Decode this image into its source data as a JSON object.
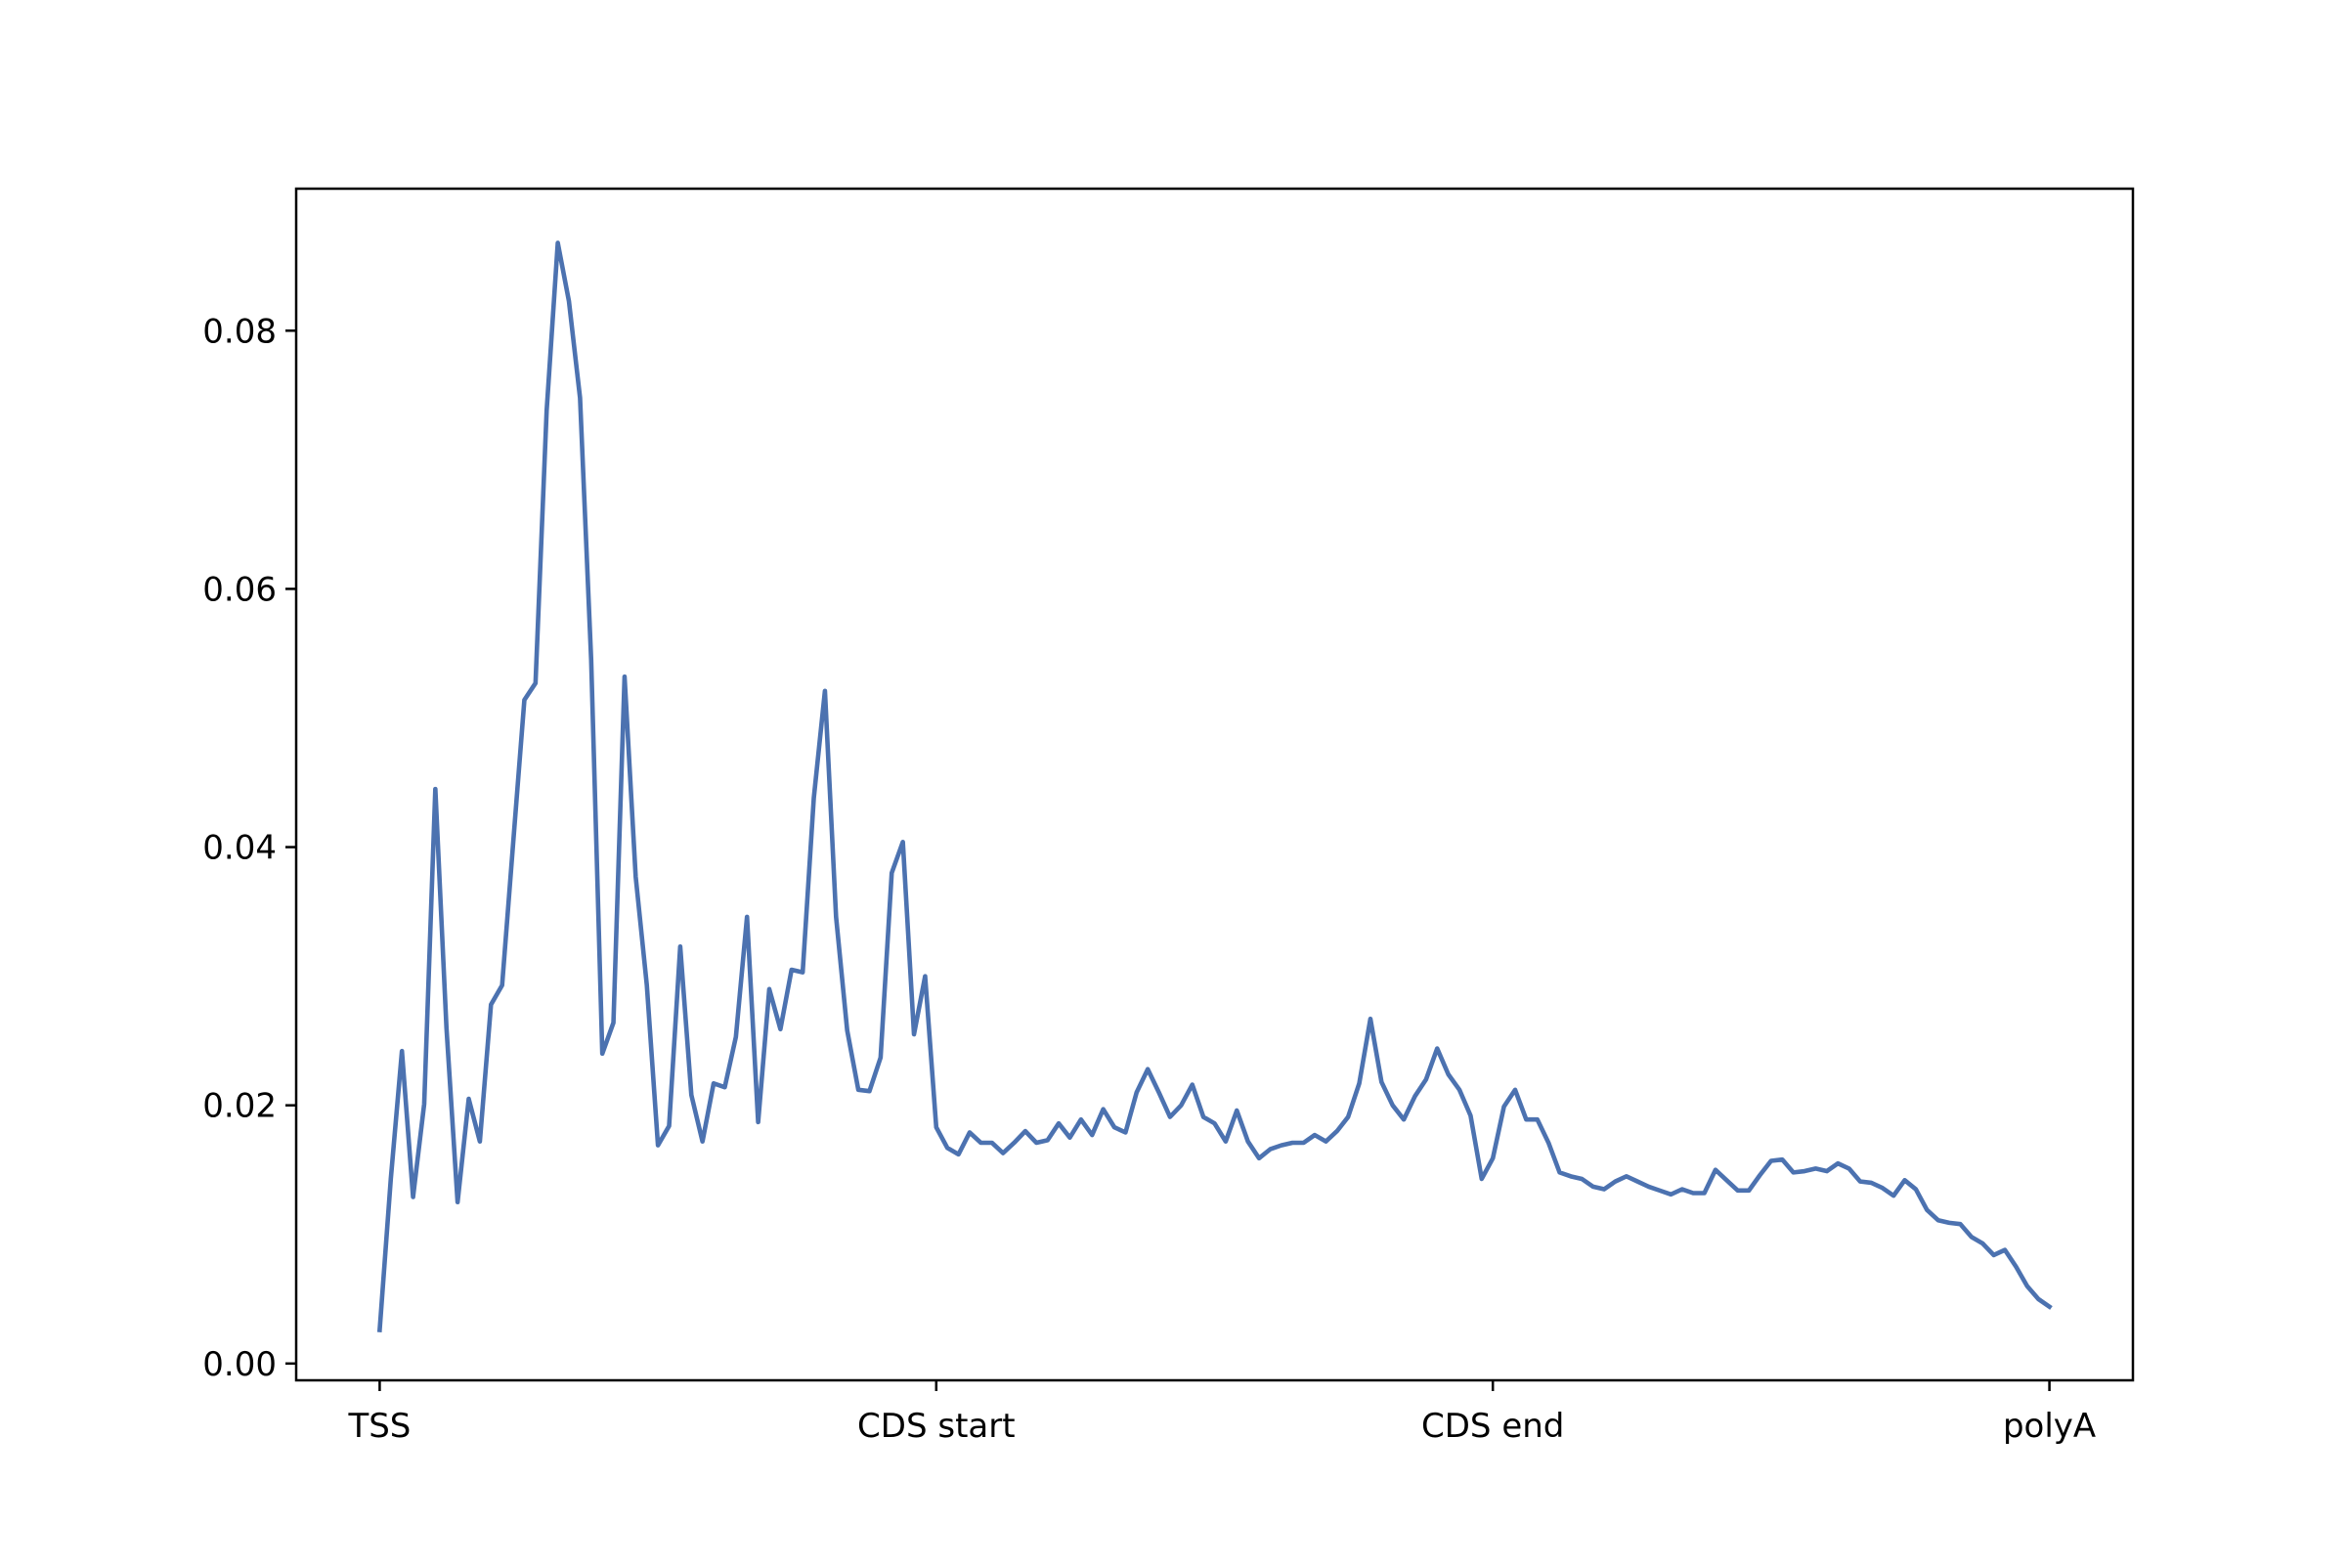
{
  "chart_data": {
    "type": "line",
    "x": [
      0,
      1,
      2,
      3,
      4,
      5,
      6,
      7,
      8,
      9,
      10,
      11,
      12,
      13,
      14,
      15,
      16,
      17,
      18,
      19,
      20,
      21,
      22,
      23,
      24,
      25,
      26,
      27,
      28,
      29,
      30,
      31,
      32,
      33,
      34,
      35,
      36,
      37,
      38,
      39,
      40,
      41,
      42,
      43,
      44,
      45,
      46,
      47,
      48,
      49,
      50,
      51,
      52,
      53,
      54,
      55,
      56,
      57,
      58,
      59,
      60,
      61,
      62,
      63,
      64,
      65,
      66,
      67,
      68,
      69,
      70,
      71,
      72,
      73,
      74,
      75,
      76,
      77,
      78,
      79,
      80,
      81,
      82,
      83,
      84,
      85,
      86,
      87,
      88,
      89,
      90,
      91,
      92,
      93,
      94,
      95,
      96,
      97,
      98,
      99,
      100,
      101,
      102,
      103,
      104,
      105,
      106,
      107,
      108,
      109,
      110,
      111,
      112,
      113,
      114,
      115,
      116,
      117,
      118,
      119,
      120,
      121,
      122,
      123,
      124,
      125,
      126,
      127,
      128,
      129,
      130,
      131,
      132,
      133,
      134,
      135,
      136,
      137,
      138,
      139,
      140,
      141,
      142,
      143,
      144,
      145,
      146,
      147,
      148,
      149,
      150
    ],
    "values": [
      0.0026,
      0.0143,
      0.0242,
      0.0129,
      0.0201,
      0.0445,
      0.026,
      0.0125,
      0.0205,
      0.0172,
      0.0278,
      0.0293,
      0.0404,
      0.0514,
      0.0527,
      0.0738,
      0.0868,
      0.0823,
      0.0748,
      0.0545,
      0.024,
      0.0264,
      0.0532,
      0.0377,
      0.0293,
      0.0169,
      0.0184,
      0.0323,
      0.0208,
      0.0172,
      0.0217,
      0.0214,
      0.0253,
      0.0346,
      0.0187,
      0.029,
      0.0259,
      0.0305,
      0.0303,
      0.0438,
      0.0521,
      0.0346,
      0.0258,
      0.0212,
      0.0211,
      0.0237,
      0.038,
      0.0404,
      0.0255,
      0.03,
      0.0183,
      0.0167,
      0.0162,
      0.0179,
      0.0171,
      0.0171,
      0.0163,
      0.0171,
      0.018,
      0.0171,
      0.0173,
      0.0186,
      0.0175,
      0.0189,
      0.0177,
      0.0197,
      0.0183,
      0.0179,
      0.021,
      0.0228,
      0.021,
      0.0191,
      0.02,
      0.0216,
      0.0191,
      0.0186,
      0.0172,
      0.0196,
      0.0172,
      0.0159,
      0.0166,
      0.0169,
      0.0171,
      0.0171,
      0.0177,
      0.0172,
      0.018,
      0.0191,
      0.0217,
      0.0267,
      0.0218,
      0.02,
      0.0189,
      0.0207,
      0.022,
      0.0244,
      0.0224,
      0.0212,
      0.0192,
      0.0143,
      0.0159,
      0.0199,
      0.0212,
      0.0189,
      0.0189,
      0.0171,
      0.0148,
      0.0145,
      0.0143,
      0.0137,
      0.0135,
      0.0141,
      0.0145,
      0.0141,
      0.0137,
      0.0134,
      0.0131,
      0.0135,
      0.0132,
      0.0132,
      0.015,
      0.0142,
      0.0134,
      0.0134,
      0.0146,
      0.0157,
      0.0158,
      0.0148,
      0.0149,
      0.0151,
      0.0149,
      0.0155,
      0.0151,
      0.0141,
      0.014,
      0.0136,
      0.013,
      0.0142,
      0.0135,
      0.0119,
      0.0111,
      0.0109,
      0.0108,
      0.0098,
      0.0093,
      0.0084,
      0.0088,
      0.0075,
      0.006,
      0.005,
      0.0044
    ],
    "color": "#4c72b0",
    "xlim": [
      -7.5,
      157.5
    ],
    "ylim": [
      -0.0013,
      0.091
    ],
    "xticks": [
      {
        "value": 0,
        "label": "TSS"
      },
      {
        "value": 50,
        "label": "CDS start"
      },
      {
        "value": 100,
        "label": "CDS end"
      },
      {
        "value": 150,
        "label": "polyA"
      }
    ],
    "yticks": [
      {
        "value": 0,
        "label": "0.00"
      },
      0.02,
      0.04,
      0.06,
      0.08
    ]
  }
}
